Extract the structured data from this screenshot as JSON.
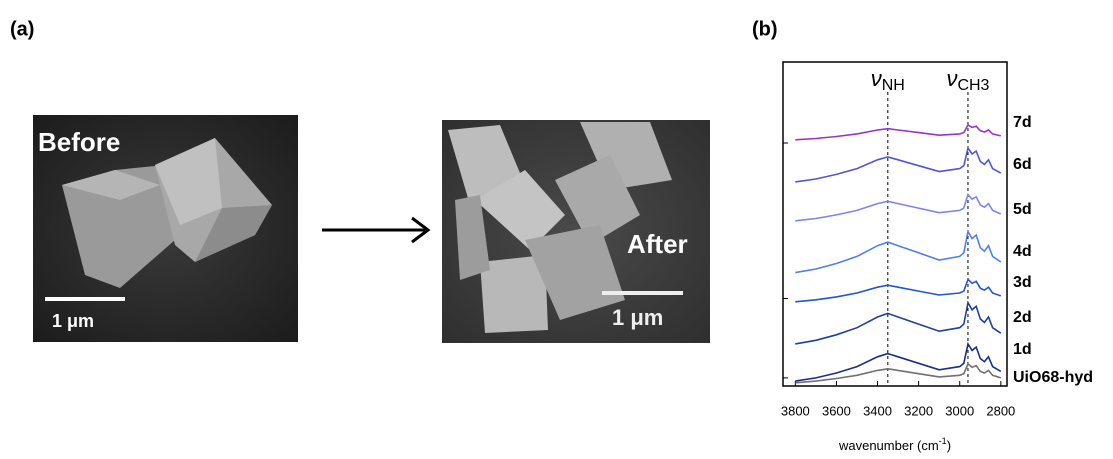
{
  "panel_a": {
    "label": "(a)",
    "before_label": "Before",
    "after_label": "After",
    "scale_bar_before": "1 μm",
    "scale_bar_after": "1 μm"
  },
  "chart_data": {
    "type": "line",
    "panel_label": "(b)",
    "x_label": {
      "text": "wavenumber (cm",
      "superscript": "-1",
      "suffix": ")"
    },
    "x": [
      3800,
      3700,
      3600,
      3500,
      3400,
      3350,
      3300,
      3200,
      3100,
      3000,
      2980,
      2960,
      2940,
      2920,
      2900,
      2880,
      2860,
      2840,
      2800
    ],
    "xlim": [
      3860,
      2770
    ],
    "xticks": [
      3800,
      3600,
      3400,
      3200,
      3000,
      2800
    ],
    "ylim": [
      0,
      10
    ],
    "yticks": [
      0.25,
      2.7,
      7.5
    ],
    "grid": false,
    "annotations": [
      {
        "symbol": "ν",
        "subscript": "NH",
        "x": 3350
      },
      {
        "symbol": "ν",
        "subscript": "CH3",
        "x": 2960
      }
    ],
    "series": [
      {
        "name": "UiO68-hyd",
        "color": "#707070",
        "values": [
          0.1,
          0.15,
          0.23,
          0.33,
          0.48,
          0.53,
          0.48,
          0.38,
          0.28,
          0.33,
          0.38,
          0.68,
          0.58,
          0.63,
          0.45,
          0.4,
          0.48,
          0.33,
          0.25
        ]
      },
      {
        "name": "1d",
        "color": "#1a2f8a",
        "values": [
          0.15,
          0.25,
          0.4,
          0.6,
          0.9,
          1.0,
          0.9,
          0.7,
          0.5,
          0.6,
          0.7,
          1.3,
          1.1,
          1.2,
          0.85,
          0.75,
          0.9,
          0.6,
          0.45
        ]
      },
      {
        "name": "2d",
        "color": "#1f3fa0",
        "values": [
          1.3,
          1.41,
          1.58,
          1.8,
          2.13,
          2.24,
          2.13,
          1.91,
          1.69,
          1.8,
          1.91,
          2.57,
          2.35,
          2.46,
          2.07,
          1.96,
          2.13,
          1.8,
          1.63
        ]
      },
      {
        "name": "3d",
        "color": "#2255d0",
        "values": [
          2.6,
          2.66,
          2.75,
          2.87,
          3.05,
          3.11,
          3.05,
          2.93,
          2.81,
          2.87,
          2.93,
          3.29,
          3.17,
          3.23,
          3.02,
          2.96,
          3.05,
          2.87,
          2.78
        ]
      },
      {
        "name": "4d",
        "color": "#4f7ff0",
        "values": [
          3.5,
          3.61,
          3.78,
          4.0,
          4.33,
          4.44,
          4.33,
          4.11,
          3.89,
          4.0,
          4.11,
          4.77,
          4.55,
          4.66,
          4.27,
          4.16,
          4.33,
          4.0,
          3.83
        ]
      },
      {
        "name": "5d",
        "color": "#7b85f0",
        "values": [
          5.1,
          5.17,
          5.28,
          5.42,
          5.63,
          5.7,
          5.63,
          5.49,
          5.35,
          5.42,
          5.49,
          5.91,
          5.77,
          5.84,
          5.59,
          5.52,
          5.63,
          5.42,
          5.31
        ]
      },
      {
        "name": "6d",
        "color": "#4f55d9",
        "values": [
          6.3,
          6.39,
          6.53,
          6.71,
          6.98,
          7.07,
          6.98,
          6.8,
          6.62,
          6.71,
          6.8,
          7.34,
          7.16,
          7.25,
          6.93,
          6.84,
          6.98,
          6.71,
          6.57
        ]
      },
      {
        "name": "7d",
        "color": "#9933cc",
        "values": [
          7.6,
          7.64,
          7.7,
          7.78,
          7.9,
          7.94,
          7.9,
          7.82,
          7.74,
          7.78,
          7.82,
          8.06,
          7.98,
          8.02,
          7.88,
          7.84,
          7.9,
          7.78,
          7.72
        ]
      }
    ]
  }
}
